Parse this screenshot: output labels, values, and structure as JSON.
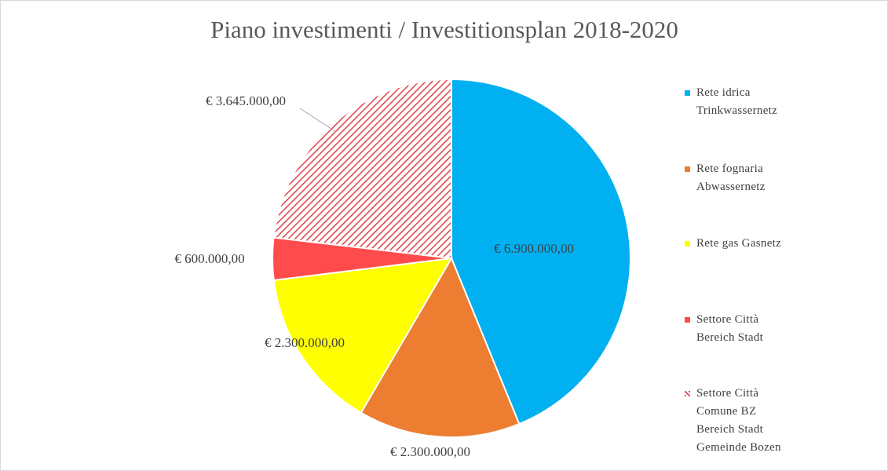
{
  "chart_data": {
    "type": "pie",
    "title": "Piano investimenti / Investitionsplan 2018-2020",
    "categories": [
      "Rete idrica\nTrinkwassernetz",
      "Rete fognaria\nAbwassernetz",
      "Rete gas Gasnetz",
      "Settore Città\nBereich Stadt",
      "Settore Città\nComune BZ\nBereich Stadt\nGemeinde Bozen"
    ],
    "values": [
      6900000,
      2300000,
      2300000,
      600000,
      3645000
    ],
    "value_labels": [
      "€ 6.900.000,00",
      "€ 2.300.000,00",
      "€ 2.300.000,00",
      "€ 600.000,00",
      "€ 3.645.000,00"
    ],
    "colors": [
      "#00b0f0",
      "#ed7d31",
      "#ffff00",
      "#ff4b4b",
      "#e0404a"
    ],
    "hatched": [
      false,
      false,
      false,
      false,
      true
    ],
    "legend": "right"
  }
}
